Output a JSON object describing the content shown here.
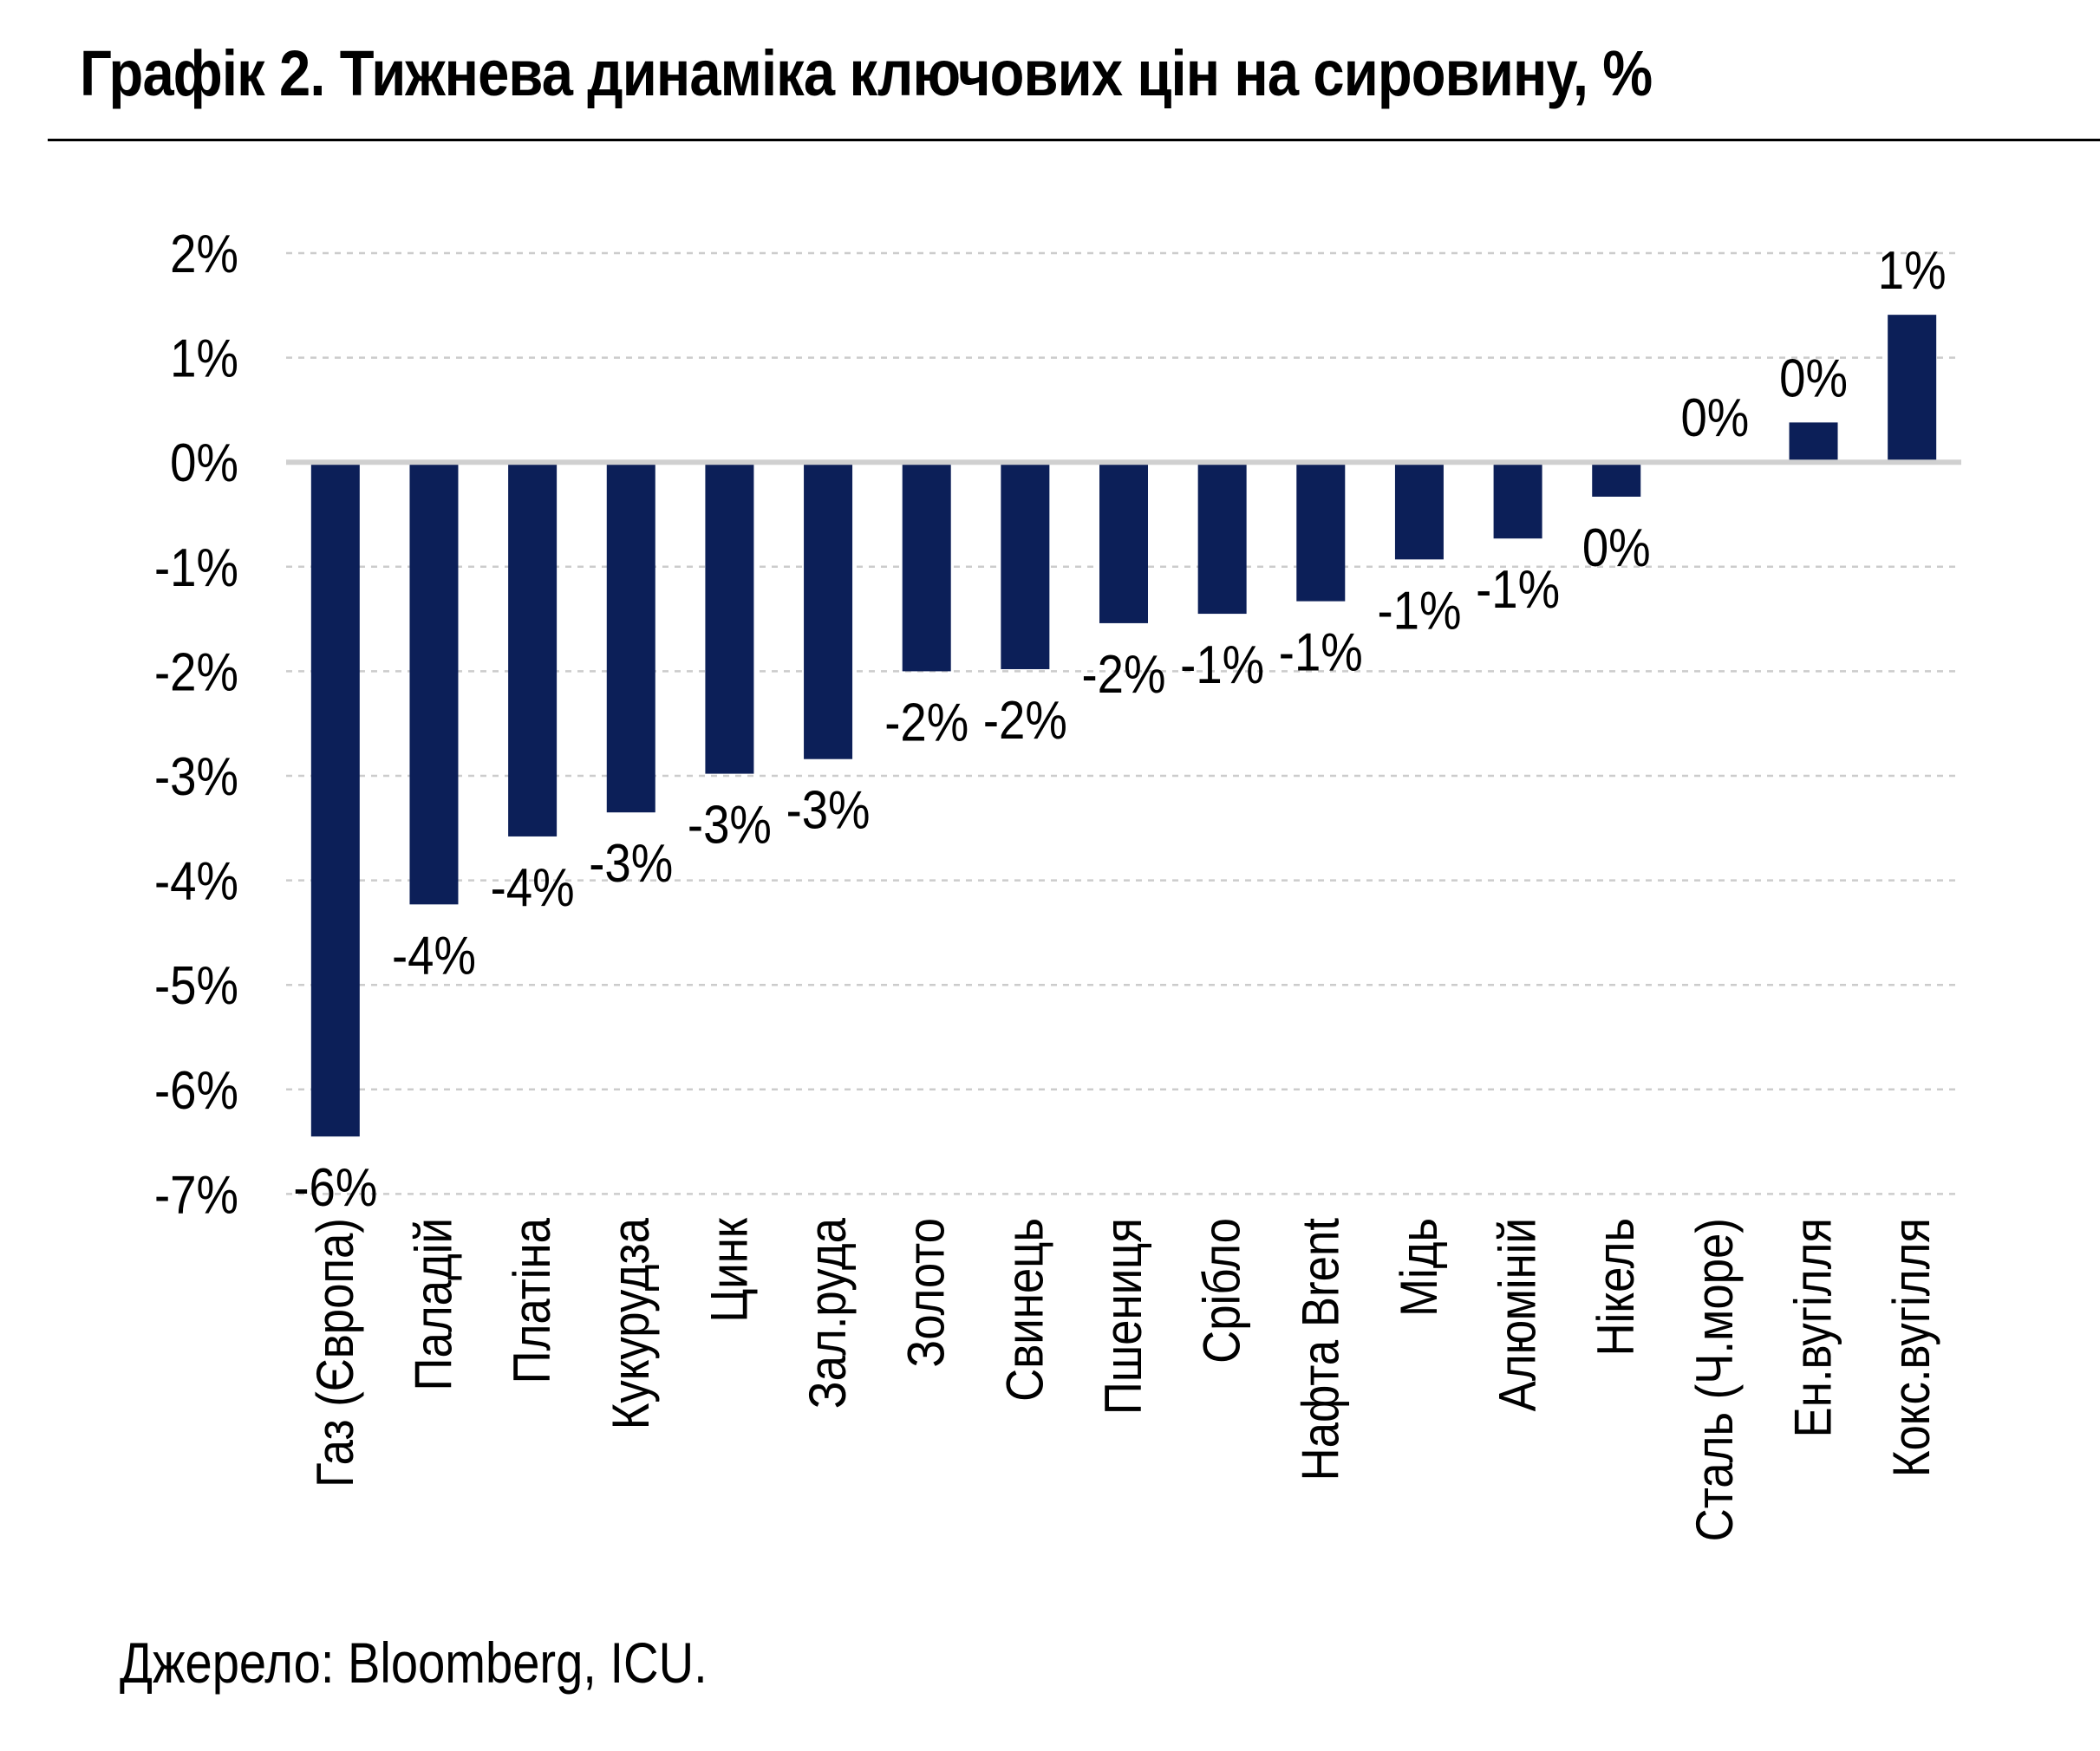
{
  "title": "Графік 2. Тижнева динаміка ключових цін на сировину, %",
  "source": "Джерело: Bloomberg, ICU.",
  "colors": {
    "bar": "#0c1f58",
    "grid": "#cccccc",
    "zero_line": "#d0d0d0",
    "text": "#000000"
  },
  "chart_data": {
    "type": "bar",
    "categories": [
      "Газ (Європа)",
      "Паладій",
      "Платіна",
      "Кукурудза",
      "Цинк",
      "Зал.руда",
      "Золото",
      "Свинець",
      "Пшениця",
      "Срібло",
      "Нафта Brent",
      "Мідь",
      "Алюміній",
      "Нікель",
      "Сталь (Ч.море)",
      "Ен.вугілля",
      "Кокс.вугілля"
    ],
    "values": [
      -6.45,
      -4.23,
      -3.58,
      -3.35,
      -2.98,
      -2.84,
      -2.0,
      -1.98,
      -1.54,
      -1.45,
      -1.33,
      -0.93,
      -0.73,
      -0.33,
      0.0,
      0.38,
      1.41
    ],
    "data_labels": [
      "-6%",
      "-4%",
      "-4%",
      "-3%",
      "-3%",
      "-3%",
      "-2%",
      "-2%",
      "-2%",
      "-1%",
      "-1%",
      "-1%",
      "-1%",
      "0%",
      "0%",
      "0%",
      "1%"
    ],
    "y_ticks": [
      2,
      1,
      0,
      -1,
      -2,
      -3,
      -4,
      -5,
      -6,
      -7
    ],
    "y_tick_labels": [
      "2%",
      "1%",
      "0%",
      "-1%",
      "-2%",
      "-3%",
      "-4%",
      "-5%",
      "-6%",
      "-7%"
    ],
    "ylim": [
      -7,
      2
    ],
    "grid": true,
    "legend": "none",
    "xlabel": "",
    "ylabel": ""
  }
}
